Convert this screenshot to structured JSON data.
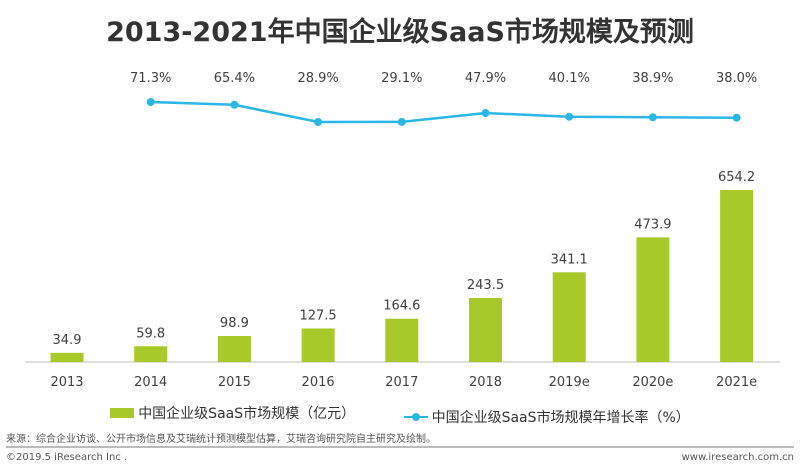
{
  "chart_data": {
    "type": "bar+line",
    "title": "2013-2021年中国企业级SaaS市场规模及预测",
    "categories": [
      "2013",
      "2014",
      "2015",
      "2016",
      "2017",
      "2018",
      "2019e",
      "2020e",
      "2021e"
    ],
    "series": [
      {
        "name": "中国企业级SaaS市场规模（亿元）",
        "type": "bar",
        "color": "#a8c92a",
        "values": [
          34.9,
          59.8,
          98.9,
          127.5,
          164.6,
          243.5,
          341.1,
          473.9,
          654.2
        ],
        "labels": [
          "34.9",
          "59.8",
          "98.9",
          "127.5",
          "164.6",
          "243.5",
          "341.1",
          "473.9",
          "654.2"
        ]
      },
      {
        "name": "中国企业级SaaS市场规模年增长率（%）",
        "type": "line",
        "color": "#2bb7e6",
        "values": [
          null,
          71.3,
          65.4,
          28.9,
          29.1,
          47.9,
          40.1,
          38.9,
          38.0
        ],
        "labels": [
          null,
          "71.3%",
          "65.4%",
          "28.9%",
          "29.1%",
          "47.9%",
          "40.1%",
          "38.9%",
          "38.0%"
        ]
      }
    ],
    "legend_position": "bottom",
    "grid": false
  },
  "footer": {
    "source": "来源：综合企业访谈、公开市场信息及艾瑞统计预测模型估算，艾瑞咨询研究院自主研究及绘制。",
    "copyright": "©2019.5 iResearch Inc .",
    "website": "www.iresearch.com.cn"
  }
}
